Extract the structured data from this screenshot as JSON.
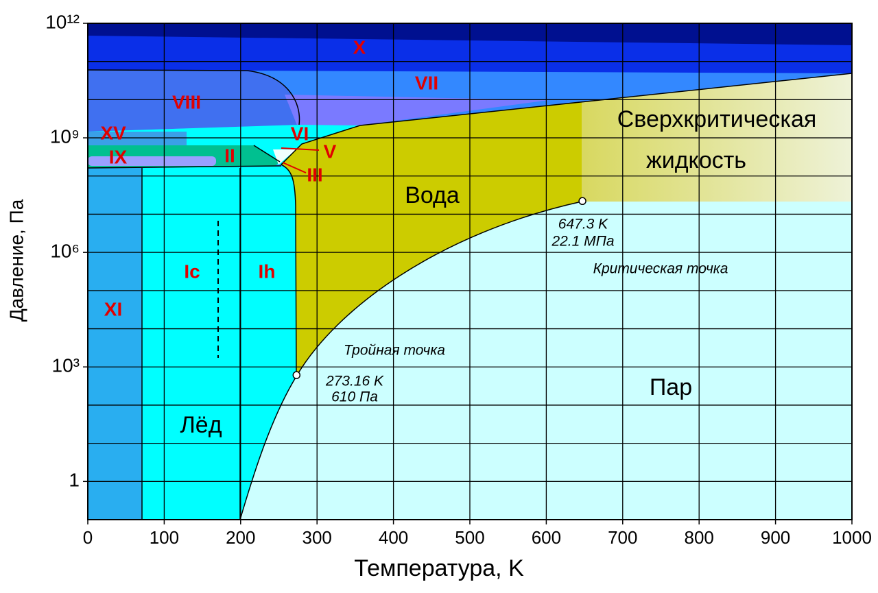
{
  "chart_data": {
    "type": "phase-diagram",
    "xlabel": "Температура, K",
    "ylabel": "Давление, Па",
    "xlim": [
      0,
      1000
    ],
    "xticks": [
      0,
      100,
      200,
      300,
      400,
      500,
      600,
      700,
      800,
      900,
      1000
    ],
    "yscale": "log",
    "ylim": [
      0.1,
      1000000000000
    ],
    "yticks": [
      1,
      {
        "value": 1000,
        "label": "10³"
      },
      {
        "value": 1000000,
        "label": "10⁶"
      },
      {
        "value": 1000000000,
        "label": "10⁹"
      },
      {
        "value": 1000000000000,
        "label": "10¹²"
      }
    ],
    "yminor_ticks": [
      10,
      100,
      10000,
      100000,
      10000000,
      100000000,
      10000000000,
      100000000000
    ],
    "grid": true,
    "regions": [
      "X",
      "VII",
      "VIII",
      "XV",
      "IX",
      "II",
      "VI",
      "V",
      "III",
      "Ic",
      "Ih",
      "XI",
      "Вода",
      "Лёд",
      "Пар",
      "Сверхкритическая",
      "жидкость"
    ],
    "points": [
      {
        "name": "Тройная точка",
        "x": 273.16,
        "y": 610,
        "labels": [
          "273.16 K",
          "610 Па"
        ]
      },
      {
        "name": "Критическая точка",
        "x": 647.3,
        "y": 22100000,
        "labels": [
          "647.3 K",
          "22.1 МПа"
        ]
      }
    ]
  }
}
